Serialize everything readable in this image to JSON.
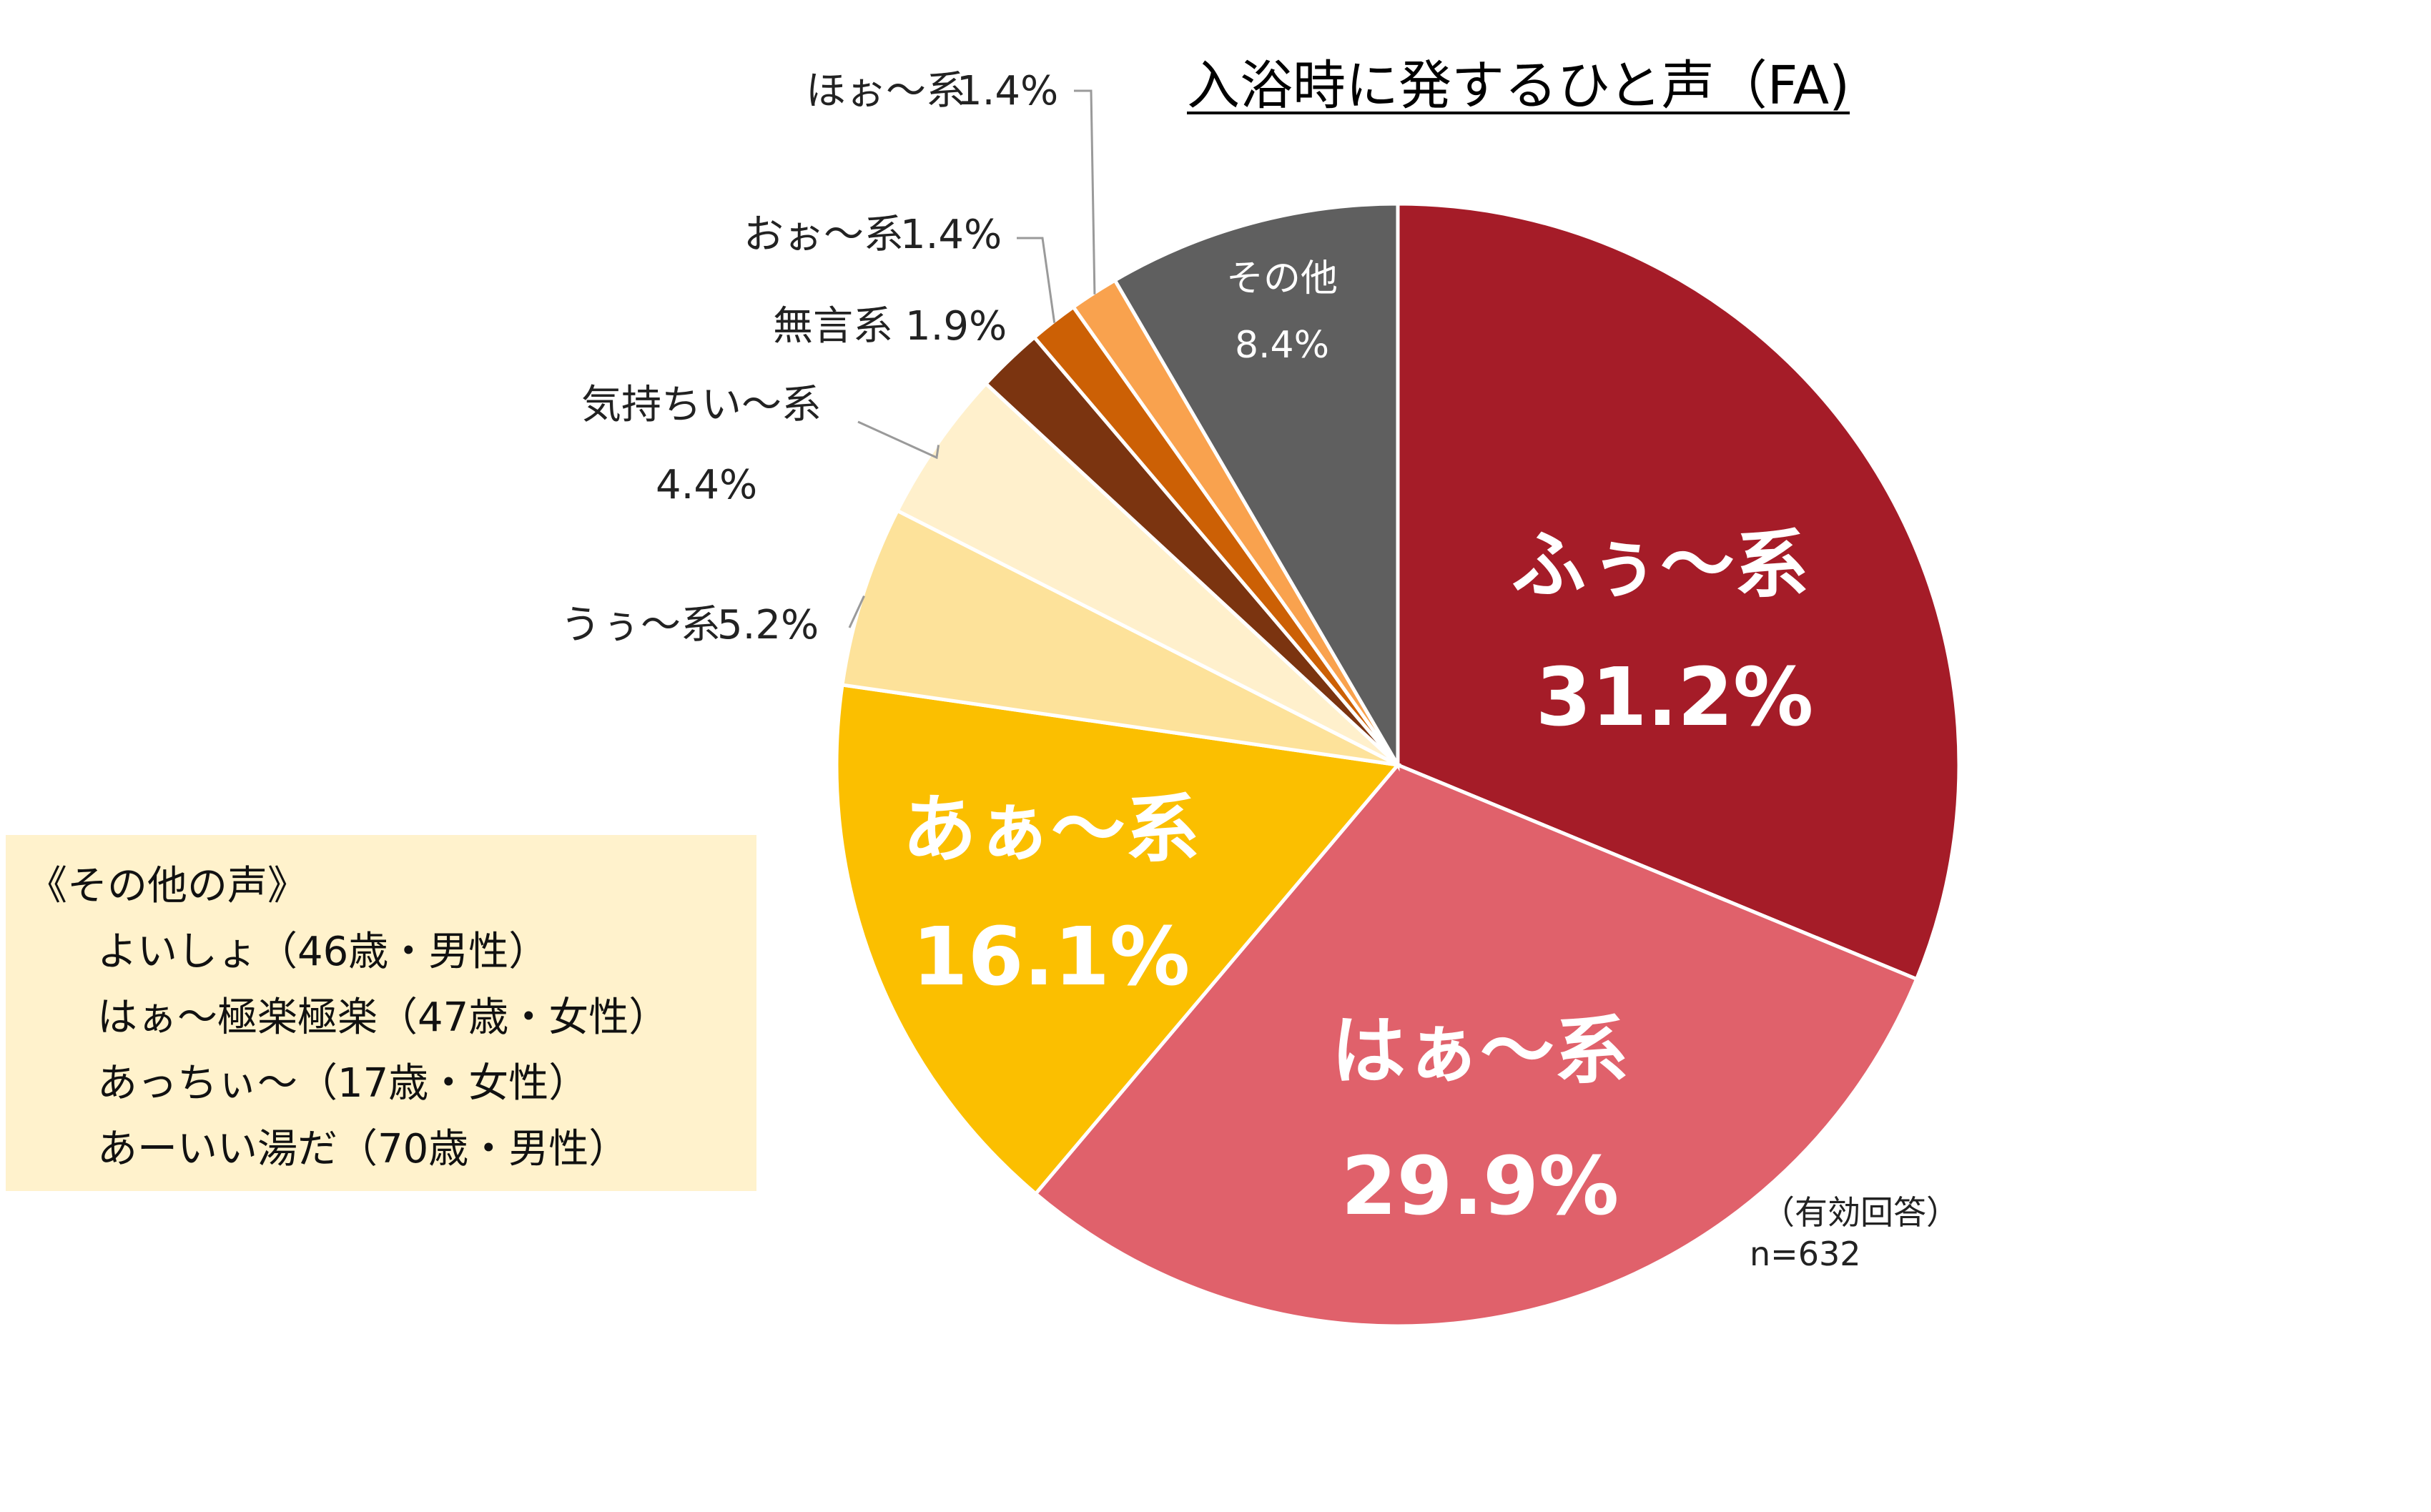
{
  "chart_data": {
    "type": "pie",
    "title": "入浴時に発するひと声（FA)",
    "slices": [
      {
        "label": "ふぅ〜系",
        "value": 31.2,
        "value_text": "31.2%",
        "color": "#a51c28",
        "label_position": "inside"
      },
      {
        "label": "はぁ〜系",
        "value": 29.9,
        "value_text": "29.9%",
        "color": "#e0616b",
        "label_position": "inside"
      },
      {
        "label": "あぁ〜系",
        "value": 16.1,
        "value_text": "16.1%",
        "color": "#fbbf00",
        "label_position": "inside"
      },
      {
        "label": "うぅ〜系",
        "value": 5.2,
        "value_text": "5.2%",
        "color": "#fde29a",
        "label_position": "outside"
      },
      {
        "label": "気持ちい〜系",
        "value": 4.4,
        "value_text": "4.4%",
        "color": "#fff0cc",
        "label_position": "outside"
      },
      {
        "label": "無言系",
        "value": 1.9,
        "value_text": "1.9%",
        "color": "#7b3410",
        "label_position": "outside"
      },
      {
        "label": "おぉ〜系",
        "value": 1.4,
        "value_text": "1.4%",
        "color": "#cc6005",
        "label_position": "outside"
      },
      {
        "label": "ほぉ〜系",
        "value": 1.4,
        "value_text": "1.4%",
        "color": "#f9a24e",
        "label_position": "outside"
      },
      {
        "label": "その他",
        "value": 8.4,
        "value_text": "8.4%",
        "color": "#5f5f5f",
        "label_position": "inside"
      }
    ],
    "start_angle": "12 o'clock",
    "direction": "clockwise",
    "legend": "none"
  },
  "sample": {
    "label": "（有効回答）",
    "n": "n=632"
  },
  "other_voices": {
    "title": "《その他の声》",
    "items": [
      "よいしょ（46歳・男性）",
      "はぁ〜極楽極楽（47歳・女性）",
      "あっちぃ〜（17歳・女性）",
      "あーいい湯だ（70歳・男性）"
    ]
  }
}
